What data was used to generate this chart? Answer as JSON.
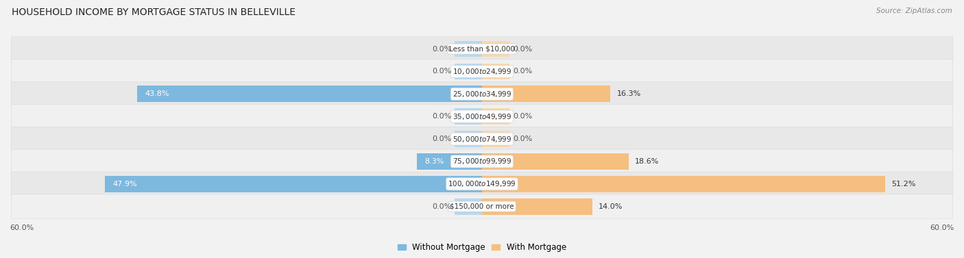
{
  "title": "HOUSEHOLD INCOME BY MORTGAGE STATUS IN BELLEVILLE",
  "source": "Source: ZipAtlas.com",
  "categories": [
    "Less than $10,000",
    "$10,000 to $24,999",
    "$25,000 to $34,999",
    "$35,000 to $49,999",
    "$50,000 to $74,999",
    "$75,000 to $99,999",
    "$100,000 to $149,999",
    "$150,000 or more"
  ],
  "without_mortgage": [
    0.0,
    0.0,
    43.8,
    0.0,
    0.0,
    8.3,
    47.9,
    0.0
  ],
  "with_mortgage": [
    0.0,
    0.0,
    16.3,
    0.0,
    0.0,
    18.6,
    51.2,
    14.0
  ],
  "color_without": "#7db8de",
  "color_with": "#f5bf80",
  "color_without_light": "#b8d9ee",
  "color_with_light": "#f8d9b0",
  "axis_limit": 60.0,
  "background_color": "#f2f2f2",
  "row_bg_even": "#e8e8e8",
  "row_bg_odd": "#f0f0f0",
  "title_fontsize": 10,
  "source_fontsize": 7.5,
  "legend_fontsize": 8.5,
  "label_fontsize": 8,
  "axis_label_fontsize": 8,
  "category_fontsize": 7.5,
  "stub_size": 3.5
}
